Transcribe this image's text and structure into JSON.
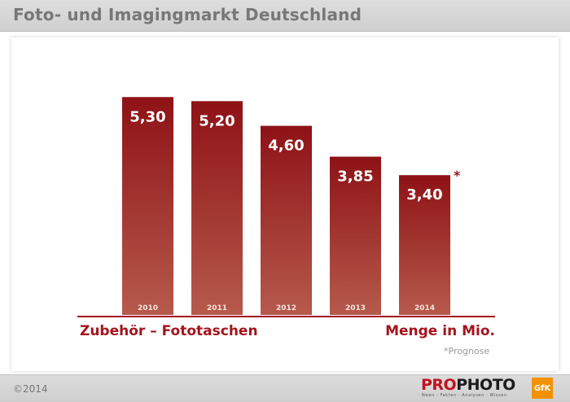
{
  "header": {
    "title": "Foto- und Imagingmarkt Deutschland"
  },
  "chart_data": {
    "type": "bar",
    "categories": [
      "2010",
      "2011",
      "2012",
      "2013",
      "2014"
    ],
    "values": [
      5.3,
      5.2,
      4.6,
      3.85,
      3.4
    ],
    "value_labels": [
      "5,30",
      "5,20",
      "4,60",
      "3,85",
      "3,40"
    ],
    "ylim": [
      0,
      5.8
    ],
    "grid": false,
    "legend": "none",
    "annotations": [
      {
        "category": "2014",
        "text": "*"
      }
    ],
    "category_label": "Zubehör – Fototaschen",
    "unit_label": "Menge in Mio.",
    "footnote": "*Prognose",
    "colors": {
      "bar_top": "#8e1216",
      "bar_bottom": "#b65a4c",
      "axis": "#a4141d",
      "label": "#ffffff",
      "year": "#f4e2de"
    }
  },
  "footer": {
    "copyright": "©2014",
    "prophoto": {
      "pro": "PRO",
      "photo": "PHOTO",
      "tagline": "News · Fakten · Analysen · Wissen"
    },
    "gfk": "GfK"
  }
}
